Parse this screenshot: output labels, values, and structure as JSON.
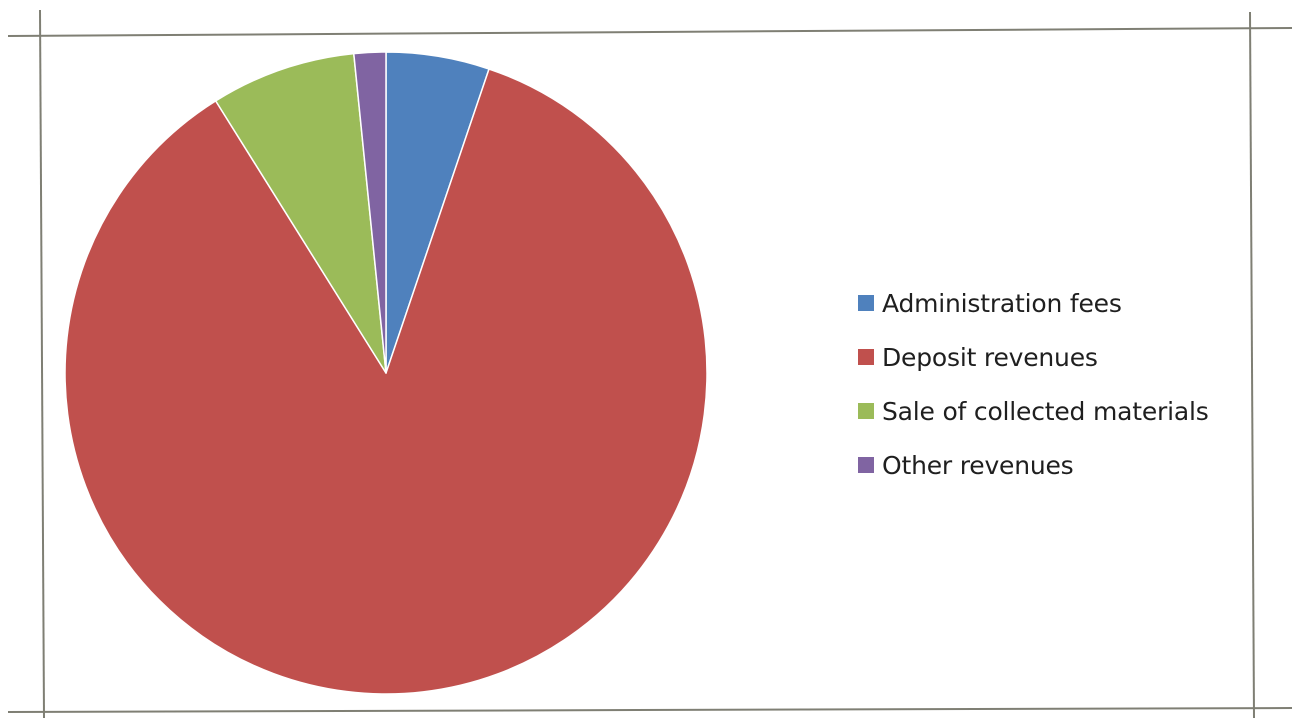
{
  "chart_data": {
    "type": "pie",
    "labels": [
      "Administration fees",
      "Deposit revenues",
      "Sale of collected materials",
      "Other revenues"
    ],
    "values": [
      5.2,
      85.9,
      7.3,
      1.6
    ],
    "unit": "percent (estimated)",
    "colors": [
      "#4F81BD",
      "#C0504D",
      "#9BBB59",
      "#8064A2"
    ],
    "start_angle": "12 o'clock",
    "direction": "clockwise",
    "legend": {
      "position": "right",
      "items": [
        {
          "label": "Administration fees",
          "color": "#4F81BD"
        },
        {
          "label": "Deposit revenues",
          "color": "#C0504D"
        },
        {
          "label": "Sale of collected materials",
          "color": "#9BBB59"
        },
        {
          "label": "Other revenues",
          "color": "#8064A2"
        }
      ]
    }
  }
}
